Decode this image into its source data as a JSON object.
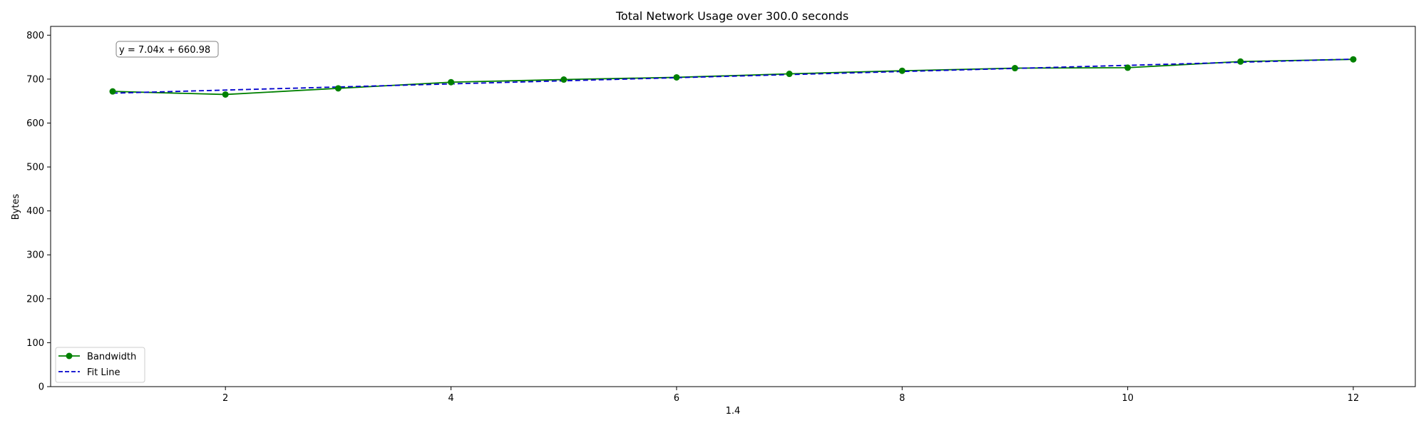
{
  "chart_data": {
    "type": "line",
    "title": "Total Network Usage over 300.0 seconds",
    "xlabel": "1.4",
    "ylabel": "Bytes",
    "x": [
      1,
      2,
      3,
      4,
      5,
      6,
      7,
      8,
      9,
      10,
      11,
      12
    ],
    "xlim": [
      0.45,
      12.55
    ],
    "ylim": [
      0,
      820
    ],
    "xticks": [
      2,
      4,
      6,
      8,
      10,
      12
    ],
    "yticks": [
      0,
      100,
      200,
      300,
      400,
      500,
      600,
      700,
      800
    ],
    "series": [
      {
        "name": "Bandwidth",
        "color": "#008000",
        "style": "solid",
        "marker": "circle",
        "values": [
          672,
          665,
          679,
          693,
          699,
          704,
          712,
          719,
          725,
          726,
          740,
          745
        ]
      },
      {
        "name": "Fit Line",
        "color": "#0000cc",
        "style": "dashed",
        "marker": "none",
        "fit": {
          "slope": 7.04,
          "intercept": 660.98
        }
      }
    ],
    "legend": {
      "position": "lower-left",
      "entries": [
        "Bandwidth",
        "Fit Line"
      ]
    },
    "annotation": {
      "text": "y = 7.04x + 660.98",
      "position": "upper-left"
    },
    "grid": false
  }
}
